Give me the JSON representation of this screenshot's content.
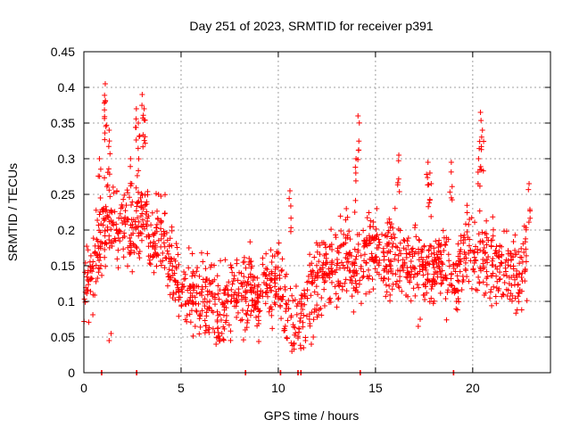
{
  "chart_data": {
    "type": "scatter",
    "title": "Day 251 of 2023, SRMTID for receiver p391",
    "xlabel": "GPS time / hours",
    "ylabel": "SRMTID / TECUs",
    "xlim": [
      0,
      24
    ],
    "ylim": [
      0,
      0.45
    ],
    "xticks": [
      0,
      5,
      10,
      15,
      20
    ],
    "xtick_labels": [
      "0",
      "5",
      "10",
      "15",
      "20"
    ],
    "yticks": [
      0,
      0.05,
      0.1,
      0.15,
      0.2,
      0.25,
      0.3,
      0.35,
      0.4,
      0.45
    ],
    "ytick_labels": [
      "0",
      "0.05",
      "0.1",
      "0.15",
      "0.2",
      "0.25",
      "0.3",
      "0.35",
      "0.4",
      "0.45"
    ],
    "grid": true,
    "marker": "plus",
    "color": "#ff0000",
    "series": [
      {
        "name": "SRMTID",
        "trend": [
          [
            0.0,
            0.11
          ],
          [
            0.5,
            0.15
          ],
          [
            1.0,
            0.2
          ],
          [
            1.5,
            0.21
          ],
          [
            2.0,
            0.21
          ],
          [
            2.5,
            0.2
          ],
          [
            3.0,
            0.22
          ],
          [
            3.5,
            0.2
          ],
          [
            4.0,
            0.2
          ],
          [
            4.5,
            0.15
          ],
          [
            5.0,
            0.12
          ],
          [
            5.5,
            0.11
          ],
          [
            6.0,
            0.11
          ],
          [
            6.5,
            0.1
          ],
          [
            7.0,
            0.09
          ],
          [
            7.5,
            0.11
          ],
          [
            8.0,
            0.1
          ],
          [
            8.5,
            0.12
          ],
          [
            9.0,
            0.1
          ],
          [
            9.5,
            0.13
          ],
          [
            10.0,
            0.12
          ],
          [
            10.5,
            0.08
          ],
          [
            11.0,
            0.08
          ],
          [
            11.5,
            0.1
          ],
          [
            12.0,
            0.13
          ],
          [
            12.5,
            0.15
          ],
          [
            13.0,
            0.15
          ],
          [
            13.5,
            0.16
          ],
          [
            14.0,
            0.15
          ],
          [
            14.5,
            0.17
          ],
          [
            15.0,
            0.17
          ],
          [
            15.5,
            0.16
          ],
          [
            16.0,
            0.16
          ],
          [
            16.5,
            0.15
          ],
          [
            17.0,
            0.15
          ],
          [
            17.5,
            0.15
          ],
          [
            18.0,
            0.15
          ],
          [
            18.5,
            0.15
          ],
          [
            19.0,
            0.12
          ],
          [
            19.5,
            0.17
          ],
          [
            20.0,
            0.17
          ],
          [
            20.5,
            0.16
          ],
          [
            21.0,
            0.16
          ],
          [
            21.5,
            0.15
          ],
          [
            22.0,
            0.14
          ],
          [
            22.5,
            0.13
          ],
          [
            22.8,
            0.16
          ]
        ],
        "scatter_spread": 0.05,
        "peaks": [
          [
            1.1,
            0.405
          ],
          [
            1.3,
            0.34
          ],
          [
            1.1,
            0.38
          ],
          [
            2.7,
            0.37
          ],
          [
            3.0,
            0.39
          ],
          [
            3.1,
            0.37
          ],
          [
            2.8,
            0.35
          ],
          [
            2.4,
            0.3
          ],
          [
            0.8,
            0.3
          ],
          [
            14.1,
            0.36
          ],
          [
            14.0,
            0.3
          ],
          [
            16.2,
            0.305
          ],
          [
            17.7,
            0.295
          ],
          [
            17.8,
            0.28
          ],
          [
            18.9,
            0.295
          ],
          [
            20.4,
            0.365
          ],
          [
            20.5,
            0.34
          ],
          [
            20.3,
            0.3
          ],
          [
            22.9,
            0.265
          ],
          [
            13.5,
            0.23
          ],
          [
            10.6,
            0.255
          ]
        ],
        "lows": [
          [
            1.3,
            0.045
          ],
          [
            6.8,
            0.04
          ],
          [
            7.0,
            0.045
          ],
          [
            10.7,
            0.03
          ],
          [
            11.3,
            0.035
          ],
          [
            11.7,
            0.04
          ],
          [
            17.2,
            0.065
          ],
          [
            8.3,
            0.06
          ]
        ],
        "zero_points": [
          0.9,
          2.7,
          8.3,
          10.1,
          11.0,
          11.15,
          14.2,
          19.0
        ]
      }
    ]
  }
}
